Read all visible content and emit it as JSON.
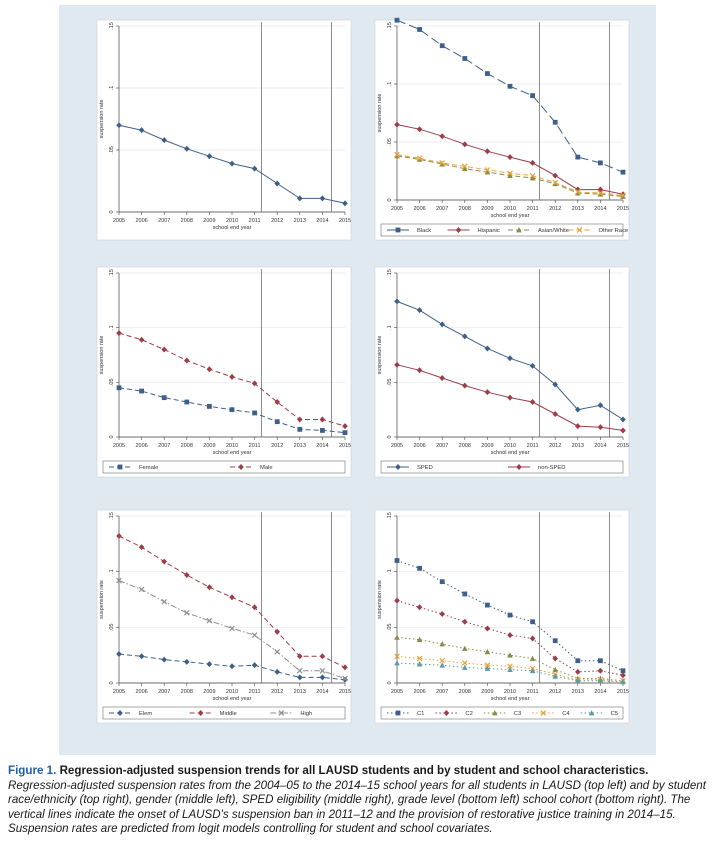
{
  "caption": {
    "label": "Figure 1.",
    "title": "Regression-adjusted suspension trends for all LAUSD students and by student and school characteristics.",
    "body": "Regression-adjusted suspension rates from the 2004–05 to the 2014–15 school years for all students in LAUSD (top left) and by student race/ethnicity (top right), gender (middle left), SPED eligibility (middle right), grade level (bottom left) school cohort (bottom right). The vertical lines indicate the onset of LAUSD's suspension ban in 2011–12 and the provision of restorative justice training in 2014–15. Suspension rates are predicted from logit models controlling for student and school covariates."
  },
  "colors": {
    "panel_bg": "#dfe9ef",
    "plot_bg": "#ffffff",
    "navy": "#3e5f8a",
    "maroon": "#9c3d4a",
    "olive": "#8a8a4a",
    "orange": "#e8a33c",
    "gray": "#8f8f8f",
    "teal": "#5f9aa8"
  },
  "chart_data": [
    {
      "id": "all",
      "type": "line",
      "title": "",
      "xlabel": "school end year",
      "ylabel": "suspension rate",
      "x": [
        2005,
        2006,
        2007,
        2008,
        2009,
        2010,
        2011,
        2012,
        2013,
        2014,
        2015
      ],
      "xlim": [
        2005,
        2015
      ],
      "ylim": [
        0,
        0.15
      ],
      "yticks": [
        0,
        0.05,
        0.1,
        0.15
      ],
      "ytick_labels": [
        "0",
        ".05",
        ".1",
        ".15"
      ],
      "vlines": [
        2011.3,
        2014.4
      ],
      "legend": [],
      "series": [
        {
          "name": "",
          "color": "navy",
          "dash": "solid",
          "marker": "diamond",
          "values": [
            0.07,
            0.066,
            0.058,
            0.051,
            0.045,
            0.039,
            0.035,
            0.023,
            0.011,
            0.011,
            0.007
          ]
        }
      ]
    },
    {
      "id": "race",
      "type": "line",
      "title": "",
      "xlabel": "school end year",
      "ylabel": "suspension rate",
      "x": [
        2005,
        2006,
        2007,
        2008,
        2009,
        2010,
        2011,
        2012,
        2013,
        2014,
        2015
      ],
      "xlim": [
        2005,
        2015
      ],
      "ylim": [
        0,
        0.15
      ],
      "yticks": [
        0,
        0.05,
        0.1,
        0.15
      ],
      "ytick_labels": [
        "0",
        ".05",
        ".1",
        ".15"
      ],
      "vlines": [
        2011.3,
        2014.4
      ],
      "legend": [
        "Black",
        "Hispanic",
        "Asian/White",
        "Other Race"
      ],
      "series": [
        {
          "name": "Black",
          "color": "navy",
          "dash": "long",
          "marker": "square",
          "values": [
            0.155,
            0.147,
            0.133,
            0.122,
            0.109,
            0.098,
            0.09,
            0.067,
            0.037,
            0.032,
            0.024
          ]
        },
        {
          "name": "Hispanic",
          "color": "maroon",
          "dash": "solid",
          "marker": "diamond",
          "values": [
            0.065,
            0.061,
            0.055,
            0.048,
            0.042,
            0.037,
            0.032,
            0.021,
            0.009,
            0.009,
            0.005
          ]
        },
        {
          "name": "Asian/White",
          "color": "olive",
          "dash": "dash",
          "marker": "triangle",
          "values": [
            0.038,
            0.035,
            0.031,
            0.027,
            0.024,
            0.021,
            0.019,
            0.014,
            0.006,
            0.005,
            0.003
          ]
        },
        {
          "name": "Other Race",
          "color": "orange",
          "dash": "dash",
          "marker": "x",
          "values": [
            0.039,
            0.036,
            0.032,
            0.029,
            0.026,
            0.023,
            0.021,
            0.015,
            0.007,
            0.006,
            0.004
          ]
        }
      ]
    },
    {
      "id": "gender",
      "type": "line",
      "title": "",
      "xlabel": "school end year",
      "ylabel": "suspension rate",
      "x": [
        2005,
        2006,
        2007,
        2008,
        2009,
        2010,
        2011,
        2012,
        2013,
        2014,
        2015
      ],
      "xlim": [
        2005,
        2015
      ],
      "ylim": [
        0,
        0.15
      ],
      "yticks": [
        0,
        0.05,
        0.1,
        0.15
      ],
      "ytick_labels": [
        "0",
        ".05",
        ".1",
        ".15"
      ],
      "vlines": [
        2011.3,
        2014.4
      ],
      "legend": [
        "Female",
        "Male"
      ],
      "series": [
        {
          "name": "Female",
          "color": "navy",
          "dash": "dash",
          "marker": "square",
          "values": [
            0.045,
            0.042,
            0.036,
            0.032,
            0.028,
            0.025,
            0.022,
            0.014,
            0.007,
            0.006,
            0.004
          ]
        },
        {
          "name": "Male",
          "color": "maroon",
          "dash": "dash",
          "marker": "diamond",
          "values": [
            0.095,
            0.089,
            0.08,
            0.07,
            0.062,
            0.055,
            0.049,
            0.032,
            0.016,
            0.016,
            0.01
          ]
        }
      ]
    },
    {
      "id": "sped",
      "type": "line",
      "title": "",
      "xlabel": "school end year",
      "ylabel": "suspension rate",
      "x": [
        2005,
        2006,
        2007,
        2008,
        2009,
        2010,
        2011,
        2012,
        2013,
        2014,
        2015
      ],
      "xlim": [
        2005,
        2015
      ],
      "ylim": [
        0,
        0.15
      ],
      "yticks": [
        0,
        0.05,
        0.1,
        0.15
      ],
      "ytick_labels": [
        "0",
        ".05",
        ".1",
        ".15"
      ],
      "vlines": [
        2011.3,
        2014.4
      ],
      "legend": [
        "SPED",
        "non-SPED"
      ],
      "series": [
        {
          "name": "SPED",
          "color": "navy",
          "dash": "solid",
          "marker": "diamond",
          "values": [
            0.124,
            0.116,
            0.103,
            0.092,
            0.081,
            0.072,
            0.065,
            0.048,
            0.025,
            0.029,
            0.016
          ]
        },
        {
          "name": "non-SPED",
          "color": "maroon",
          "dash": "solid",
          "marker": "diamond",
          "values": [
            0.066,
            0.061,
            0.054,
            0.047,
            0.041,
            0.036,
            0.032,
            0.021,
            0.01,
            0.009,
            0.006
          ]
        }
      ]
    },
    {
      "id": "grade",
      "type": "line",
      "title": "",
      "xlabel": "school end year",
      "ylabel": "suspension rate",
      "x": [
        2005,
        2006,
        2007,
        2008,
        2009,
        2010,
        2011,
        2012,
        2013,
        2014,
        2015
      ],
      "xlim": [
        2005,
        2015
      ],
      "ylim": [
        0,
        0.15
      ],
      "yticks": [
        0,
        0.05,
        0.1,
        0.15
      ],
      "ytick_labels": [
        "0",
        ".05",
        ".1",
        ".15"
      ],
      "vlines": [
        2011.3,
        2014.4
      ],
      "legend": [
        "Elem",
        "Middle",
        "High"
      ],
      "series": [
        {
          "name": "Elem",
          "color": "navy",
          "dash": "dash",
          "marker": "diamond",
          "values": [
            0.026,
            0.024,
            0.021,
            0.019,
            0.017,
            0.015,
            0.016,
            0.01,
            0.005,
            0.005,
            0.003
          ]
        },
        {
          "name": "Middle",
          "color": "maroon",
          "dash": "dash",
          "marker": "diamond",
          "values": [
            0.132,
            0.122,
            0.109,
            0.097,
            0.086,
            0.077,
            0.068,
            0.046,
            0.024,
            0.024,
            0.014
          ]
        },
        {
          "name": "High",
          "color": "gray",
          "dash": "dashdot",
          "marker": "x",
          "values": [
            0.092,
            0.084,
            0.073,
            0.063,
            0.056,
            0.049,
            0.043,
            0.028,
            0.011,
            0.011,
            0.004
          ]
        }
      ]
    },
    {
      "id": "cohort",
      "type": "line",
      "title": "",
      "xlabel": "school end year",
      "ylabel": "suspension rate",
      "x": [
        2005,
        2006,
        2007,
        2008,
        2009,
        2010,
        2011,
        2012,
        2013,
        2014,
        2015
      ],
      "xlim": [
        2005,
        2015
      ],
      "ylim": [
        0,
        0.15
      ],
      "yticks": [
        0,
        0.05,
        0.1,
        0.15
      ],
      "ytick_labels": [
        "0",
        ".05",
        ".1",
        ".15"
      ],
      "vlines": [
        2011.3,
        2014.4
      ],
      "legend": [
        "C1",
        "C2",
        "C3",
        "C4",
        "C5"
      ],
      "series": [
        {
          "name": "C1",
          "color": "navy",
          "dash": "dot",
          "marker": "square",
          "values": [
            0.11,
            0.103,
            0.091,
            0.08,
            0.07,
            0.061,
            0.055,
            0.038,
            0.02,
            0.02,
            0.011
          ]
        },
        {
          "name": "C2",
          "color": "maroon",
          "dash": "dot",
          "marker": "diamond",
          "values": [
            0.074,
            0.068,
            0.062,
            0.055,
            0.049,
            0.043,
            0.04,
            0.022,
            0.01,
            0.011,
            0.007
          ]
        },
        {
          "name": "C3",
          "color": "olive",
          "dash": "dot",
          "marker": "triangle",
          "values": [
            0.041,
            0.039,
            0.035,
            0.031,
            0.028,
            0.025,
            0.022,
            0.012,
            0.004,
            0.004,
            0.002
          ]
        },
        {
          "name": "C4",
          "color": "orange",
          "dash": "dot",
          "marker": "x",
          "values": [
            0.024,
            0.022,
            0.02,
            0.018,
            0.016,
            0.015,
            0.013,
            0.008,
            0.003,
            0.003,
            0.002
          ]
        },
        {
          "name": "C5",
          "color": "teal",
          "dash": "dot",
          "marker": "triangle",
          "values": [
            0.018,
            0.017,
            0.016,
            0.014,
            0.013,
            0.012,
            0.011,
            0.006,
            0.002,
            0.002,
            0.001
          ]
        }
      ]
    }
  ]
}
